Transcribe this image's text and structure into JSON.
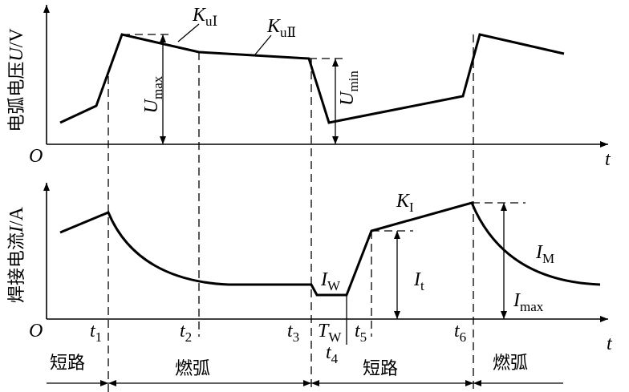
{
  "top_axis": {
    "label_text": "电弧电压",
    "label_var": "U",
    "label_unit": "/V",
    "origin": "O",
    "t": "t"
  },
  "bottom_axis": {
    "label_text": "焊接电流",
    "label_var": "I",
    "label_unit": "/A",
    "origin": "O",
    "t": "t"
  },
  "annotations": {
    "k_u1": {
      "main": "K",
      "sub": "uⅠ"
    },
    "k_u2": {
      "main": "K",
      "sub": "uⅡ"
    },
    "u_max": {
      "main": "U",
      "sub": "max"
    },
    "u_min": {
      "main": "U",
      "sub": "min"
    },
    "k_i": {
      "main": "K",
      "sub": "I"
    },
    "i_w": {
      "main": "I",
      "sub": "W"
    },
    "i_t": {
      "main": "I",
      "sub": "t"
    },
    "i_m": {
      "main": "I",
      "sub": "M"
    },
    "i_max": {
      "main": "I",
      "sub": "max"
    },
    "t_w": {
      "main": "T",
      "sub": "W"
    }
  },
  "time_ticks": [
    {
      "main": "t",
      "sub": "1"
    },
    {
      "main": "t",
      "sub": "2"
    },
    {
      "main": "t",
      "sub": "3"
    },
    {
      "main": "t",
      "sub": "4"
    },
    {
      "main": "t",
      "sub": "5"
    },
    {
      "main": "t",
      "sub": "6"
    }
  ],
  "phases": [
    "短路",
    "燃弧",
    "短路",
    "燃弧"
  ]
}
